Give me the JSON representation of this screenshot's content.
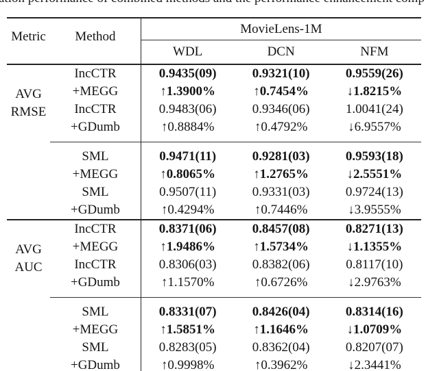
{
  "caption": "ation performance of combined methods and the performance enhancement comp",
  "colors": {
    "text": "#151515",
    "rule": "#222222",
    "background": "#ffffff"
  },
  "header": {
    "metric": "Metric",
    "method": "Method",
    "dataset": "MovieLens-1M",
    "models": [
      "WDL",
      "DCN",
      "NFM"
    ]
  },
  "sections": [
    {
      "metric_lines": [
        "AVG",
        "RMSE"
      ],
      "blocks": [
        {
          "rows": [
            {
              "method": "IncCTR",
              "bold": true,
              "values": [
                "0.9435(09)",
                "0.9321(10)",
                "0.9559(26)"
              ]
            },
            {
              "method": "+MEGG",
              "bold": true,
              "values": [
                "↑1.3900%",
                "↑0.7454%",
                "↓1.8215%"
              ]
            },
            {
              "method": "IncCTR",
              "bold": false,
              "values": [
                "0.9483(06)",
                "0.9346(06)",
                "1.0041(24)"
              ]
            },
            {
              "method": "+GDumb",
              "bold": false,
              "values": [
                "↑0.8884%",
                "↑0.4792%",
                "↓6.9557%"
              ]
            }
          ]
        },
        {
          "rows": [
            {
              "method": "SML",
              "bold": true,
              "values": [
                "0.9471(11)",
                "0.9281(03)",
                "0.9593(18)"
              ]
            },
            {
              "method": "+MEGG",
              "bold": true,
              "values": [
                "↑0.8065%",
                "↑1.2765%",
                "↓2.5551%"
              ]
            },
            {
              "method": "SML",
              "bold": false,
              "values": [
                "0.9507(11)",
                "0.9331(03)",
                "0.9724(13)"
              ]
            },
            {
              "method": "+GDumb",
              "bold": false,
              "values": [
                "↑0.4294%",
                "↑0.7446%",
                "↓3.9555%"
              ]
            }
          ]
        }
      ]
    },
    {
      "metric_lines": [
        "AVG",
        "AUC"
      ],
      "blocks": [
        {
          "rows": [
            {
              "method": "IncCTR",
              "bold": true,
              "values": [
                "0.8371(06)",
                "0.8457(08)",
                "0.8271(13)"
              ]
            },
            {
              "method": "+MEGG",
              "bold": true,
              "values": [
                "↑1.9486%",
                "↑1.5734%",
                "↓1.1355%"
              ]
            },
            {
              "method": "IncCTR",
              "bold": false,
              "values": [
                "0.8306(03)",
                "0.8382(06)",
                "0.8117(10)"
              ]
            },
            {
              "method": "+GDumb",
              "bold": false,
              "values": [
                "↑1.1570%",
                "↑0.6726%",
                "↓2.9763%"
              ]
            }
          ]
        },
        {
          "rows": [
            {
              "method": "SML",
              "bold": true,
              "values": [
                "0.8331(07)",
                "0.8426(04)",
                "0.8314(16)"
              ]
            },
            {
              "method": "+MEGG",
              "bold": true,
              "values": [
                "↑1.5851%",
                "↑1.1646%",
                "↓1.0709%"
              ]
            },
            {
              "method": "SML",
              "bold": false,
              "values": [
                "0.8283(05)",
                "0.8362(04)",
                "0.8207(07)"
              ]
            },
            {
              "method": "+GDumb",
              "bold": false,
              "values": [
                "↑0.9998%",
                "↑0.3962%",
                "↓2.3441%"
              ]
            }
          ]
        }
      ]
    }
  ]
}
